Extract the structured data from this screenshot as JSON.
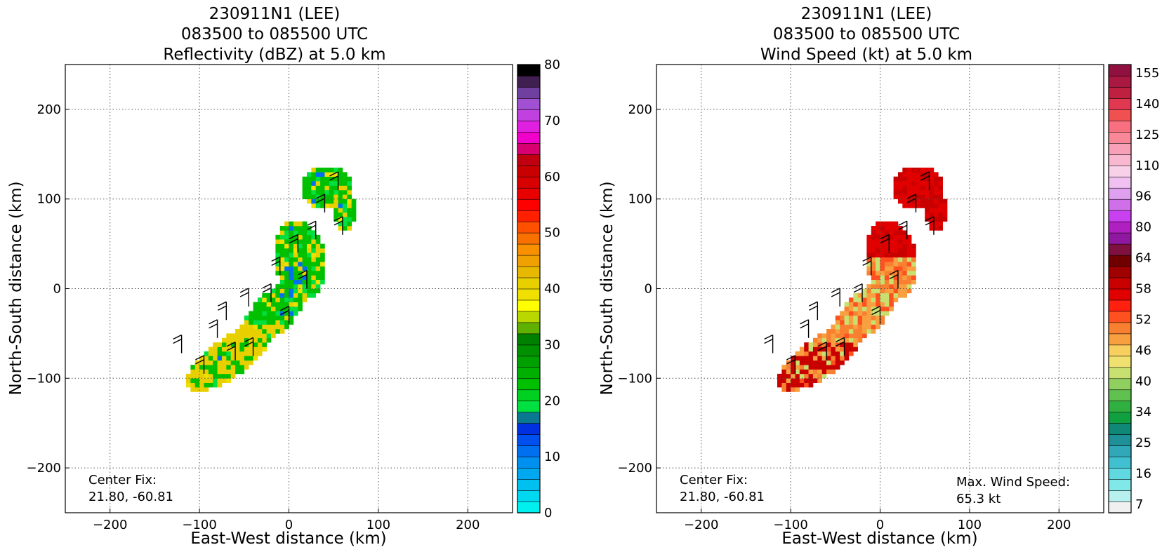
{
  "chart_data": [
    {
      "type": "heatmap",
      "title_lines": [
        "230911N1 (LEE)",
        "083500 to 085500 UTC",
        "Reflectivity (dBZ) at 5.0 km"
      ],
      "xlabel": "East-West distance (km)",
      "ylabel": "North-South distance (km)",
      "xlim": [
        -250,
        250
      ],
      "ylim": [
        -250,
        250
      ],
      "xticks": [
        "−200",
        "−100",
        "0",
        "100",
        "200"
      ],
      "yticks": [
        "200",
        "100",
        "0",
        "−100",
        "−200"
      ],
      "grid": true,
      "colorbar": {
        "min": 0,
        "max": 80,
        "step": 2.5,
        "tick_labels": [
          "0",
          "10",
          "20",
          "30",
          "40",
          "50",
          "60",
          "70",
          "80"
        ],
        "colors": [
          "#00f0f0",
          "#00d8f0",
          "#00c0f0",
          "#00a8f0",
          "#0090f0",
          "#0070f0",
          "#0050f0",
          "#0030e0",
          "#0a7890",
          "#00e040",
          "#00d020",
          "#00c000",
          "#00b000",
          "#00a000",
          "#009000",
          "#008000",
          "#60b000",
          "#b8d800",
          "#ffff00",
          "#f0e000",
          "#e8d000",
          "#e8b800",
          "#f0a000",
          "#f89000",
          "#f87000",
          "#ff5000",
          "#ff2000",
          "#ff0000",
          "#e80000",
          "#d80000",
          "#c80000",
          "#c00010",
          "#d80070",
          "#f000c8",
          "#e020e0",
          "#c040e0",
          "#a050d0",
          "#7040a0",
          "#402050",
          "#000000"
        ]
      },
      "annotations": {
        "center_fix_label": "Center Fix:",
        "center_fix_value": "21.80, -60.81"
      }
    },
    {
      "type": "heatmap",
      "title_lines": [
        "230911N1 (LEE)",
        "083500 to 085500 UTC",
        "Wind Speed (kt) at 5.0 km"
      ],
      "xlabel": "East-West distance (km)",
      "ylabel": "North-South distance (km)",
      "xlim": [
        -250,
        250
      ],
      "ylim": [
        -250,
        250
      ],
      "xticks": [
        "−200",
        "−100",
        "0",
        "100",
        "200"
      ],
      "yticks": [
        "200",
        "100",
        "0",
        "−100",
        "−200"
      ],
      "grid": true,
      "colorbar": {
        "tick_labels": [
          "7",
          "16",
          "25",
          "34",
          "40",
          "46",
          "52",
          "58",
          "64",
          "80",
          "96",
          "110",
          "125",
          "140",
          "155"
        ],
        "colors": [
          "#f0f0f0",
          "#b8f0f0",
          "#80e8e8",
          "#60d8e0",
          "#40c0d0",
          "#30a8b8",
          "#209098",
          "#108878",
          "#10a040",
          "#30b040",
          "#60c050",
          "#90d060",
          "#c8e070",
          "#f0e070",
          "#f8d060",
          "#f8a040",
          "#f88030",
          "#ff5020",
          "#ff2010",
          "#e00000",
          "#c80000",
          "#a00000",
          "#700000",
          "#801040",
          "#9018a0",
          "#b020c0",
          "#c840f0",
          "#d070e8",
          "#e0a0f0",
          "#f0c0f0",
          "#f8d0e8",
          "#f8b8d0",
          "#f8a0b8",
          "#f88898",
          "#f87080",
          "#f05050",
          "#e03850",
          "#c02040",
          "#a81840",
          "#901040"
        ]
      },
      "annotations": {
        "center_fix_label": "Center Fix:",
        "center_fix_value": "21.80, -60.81",
        "max_wind_label": "Max. Wind Speed:",
        "max_wind_value": "65.3 kt"
      }
    }
  ]
}
